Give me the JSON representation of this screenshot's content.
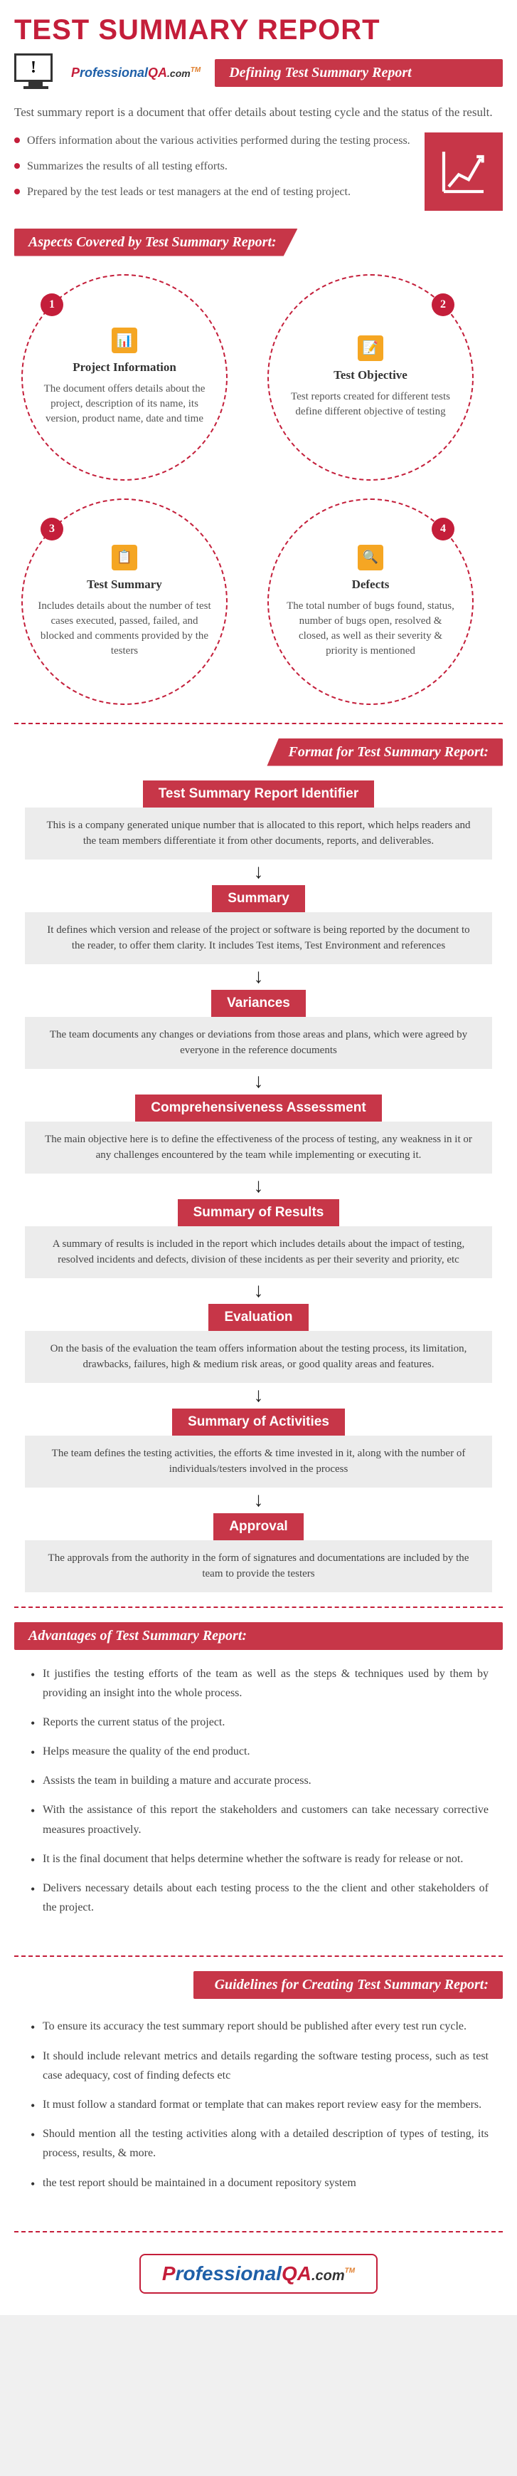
{
  "colors": {
    "accent": "#c41e3a",
    "banner": "#c73648",
    "icon_bg": "#f5a623",
    "desc_bg": "#ececec",
    "text": "#555",
    "brand_blue": "#1e5fa8"
  },
  "brand": {
    "p": "P",
    "rofessional": "rofessional",
    "qa": "QA",
    "com": ".com",
    "tm": "TM"
  },
  "title": "TEST SUMMARY REPORT",
  "defining": {
    "banner": "Defining Test Summary Report",
    "intro": "Test summary report is a document that offer details about testing cycle and the status of the result.",
    "bullets": [
      "Offers information about the various activities performed during the testing process.",
      "Summarizes the results of all testing efforts.",
      "Prepared by the test leads or test managers at the end of testing project."
    ]
  },
  "aspects": {
    "banner": "Aspects Covered by Test Summary Report:",
    "items": [
      {
        "num": "1",
        "title": "Project Information",
        "desc": "The document offers details about the project, description of its name, its version, product name, date and time"
      },
      {
        "num": "2",
        "title": "Test Objective",
        "desc": "Test reports created for different tests define different objective of testing"
      },
      {
        "num": "3",
        "title": "Test Summary",
        "desc": "Includes details about the number of test cases executed, passed, failed, and blocked and comments provided by the testers"
      },
      {
        "num": "4",
        "title": "Defects",
        "desc": "The total number of bugs found, status, number of bugs open, resolved & closed, as well as their severity & priority is mentioned"
      }
    ]
  },
  "format": {
    "banner": "Format for Test Summary Report:",
    "steps": [
      {
        "label": "Test Summary Report Identifier",
        "desc": "This is a company generated unique number that is allocated to this report, which helps readers and the team members differentiate it from other documents, reports, and deliverables."
      },
      {
        "label": "Summary",
        "desc": "It defines which version and release of the project or software is being reported by the document to the reader, to offer them clarity. It includes Test items, Test Environment and references"
      },
      {
        "label": "Variances",
        "desc": "The team documents any changes or deviations from those areas and plans, which were agreed by everyone in the reference documents"
      },
      {
        "label": "Comprehensiveness Assessment",
        "desc": "The main objective here is to define the effectiveness of the process of testing, any weakness in it or any challenges encountered by the team while implementing or executing it."
      },
      {
        "label": "Summary of Results",
        "desc": "A summary of results is included in the report which includes details about the impact of testing, resolved incidents and defects, division of these incidents as per their severity and priority, etc"
      },
      {
        "label": "Evaluation",
        "desc": "On the basis of the evaluation the team offers information about the testing process, its limitation, drawbacks, failures, high & medium risk areas, or good quality areas and features."
      },
      {
        "label": "Summary of Activities",
        "desc": "The team defines the testing activities, the efforts & time invested in it, along with the number of individuals/testers involved in the process"
      },
      {
        "label": "Approval",
        "desc": "The approvals from the authority in the form of signatures and documentations are included by the team to provide the testers"
      }
    ]
  },
  "advantages": {
    "banner": "Advantages of Test Summary Report:",
    "items": [
      "It justifies the testing efforts of the team as well as the steps & techniques used by them by providing an insight into the whole process.",
      "Reports the current status of the project.",
      "Helps measure the quality of the end product.",
      "Assists the team in building a mature and accurate process.",
      "With the assistance of this report the stakeholders and customers can take necessary corrective measures proactively.",
      "It is the final document that helps determine whether the software is ready for release or not.",
      "Delivers necessary details about each testing process to the the client and other stakeholders of the project."
    ]
  },
  "guidelines": {
    "banner": "Guidelines for Creating Test Summary Report:",
    "items": [
      "To ensure its accuracy the test summary report should be published after every test run cycle.",
      "It should include relevant metrics and details regarding the software testing process, such as test case adequacy, cost of finding defects etc",
      "It must follow a standard format or template that can makes report review easy for the members.",
      "Should mention all the testing activities along with a detailed description of types of testing, its process, results, & more.",
      "the test report should be maintained in a document repository system"
    ]
  }
}
